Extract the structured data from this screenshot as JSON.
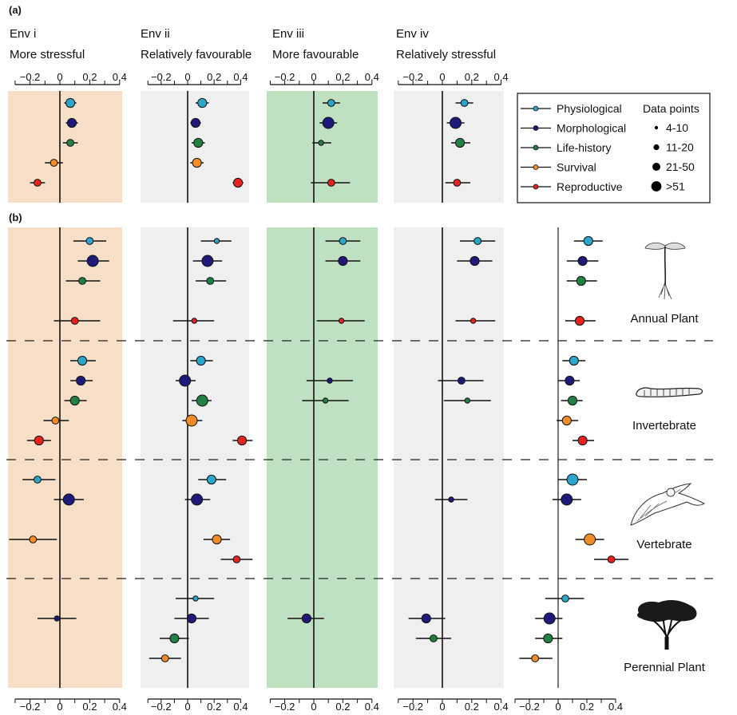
{
  "chart_data": {
    "type": "scatter",
    "subtype": "forest-plot",
    "panels_label": {
      "a": "(a)",
      "b": "(b)"
    },
    "x_ticks": [
      -0.2,
      0,
      0.2,
      0.4
    ],
    "x_tick_labels": [
      "−0.2",
      "0",
      "0.2",
      "0.4"
    ],
    "xlim": [
      -0.3,
      0.4
    ],
    "traits": [
      {
        "name": "Physiological",
        "color": "#2ba5c9"
      },
      {
        "name": "Morphological",
        "color": "#1f1a7a"
      },
      {
        "name": "Life-history",
        "color": "#238045"
      },
      {
        "name": "Survival",
        "color": "#f28c28"
      },
      {
        "name": "Reproductive",
        "color": "#e8221f"
      }
    ],
    "size_legend": {
      "title": "Data points",
      "classes": [
        "4-10",
        "11-20",
        "21-50",
        ">51"
      ]
    },
    "environments": [
      {
        "id": "i",
        "title": "Env i",
        "subtitle": "More stressful",
        "background": "#f6dfc6"
      },
      {
        "id": "ii",
        "title": "Env ii",
        "subtitle": "Relatively favourable",
        "background": "#efefef"
      },
      {
        "id": "iii",
        "title": "Env iii",
        "subtitle": "More favourable",
        "background": "#bfe0c1"
      },
      {
        "id": "iv",
        "title": "Env iv",
        "subtitle": "Relatively stressful",
        "background": "#efefef"
      },
      {
        "id": "all",
        "title": "",
        "subtitle": "",
        "background": "none"
      }
    ],
    "panel_a": {
      "i": [
        {
          "trait": "Physiological",
          "mean": 0.07,
          "lo": 0.03,
          "hi": 0.11,
          "size": 3
        },
        {
          "trait": "Morphological",
          "mean": 0.08,
          "lo": 0.04,
          "hi": 0.12,
          "size": 3
        },
        {
          "trait": "Life-history",
          "mean": 0.07,
          "lo": 0.02,
          "hi": 0.12,
          "size": 2
        },
        {
          "trait": "Survival",
          "mean": -0.04,
          "lo": -0.1,
          "hi": 0.02,
          "size": 2
        },
        {
          "trait": "Reproductive",
          "mean": -0.15,
          "lo": -0.2,
          "hi": -0.1,
          "size": 2
        }
      ],
      "ii": [
        {
          "trait": "Physiological",
          "mean": 0.11,
          "lo": 0.06,
          "hi": 0.16,
          "size": 3
        },
        {
          "trait": "Morphological",
          "mean": 0.06,
          "lo": 0.02,
          "hi": 0.1,
          "size": 3
        },
        {
          "trait": "Life-history",
          "mean": 0.08,
          "lo": 0.03,
          "hi": 0.13,
          "size": 3
        },
        {
          "trait": "Survival",
          "mean": 0.07,
          "lo": 0.02,
          "hi": 0.12,
          "size": 3
        },
        {
          "trait": "Reproductive",
          "mean": 0.38,
          "lo": 0.34,
          "hi": 0.42,
          "size": 3
        }
      ],
      "iii": [
        {
          "trait": "Physiological",
          "mean": 0.12,
          "lo": 0.06,
          "hi": 0.18,
          "size": 2
        },
        {
          "trait": "Morphological",
          "mean": 0.1,
          "lo": 0.04,
          "hi": 0.16,
          "size": 4
        },
        {
          "trait": "Life-history",
          "mean": 0.05,
          "lo": -0.01,
          "hi": 0.12,
          "size": 1
        },
        {
          "trait": "Reproductive",
          "mean": 0.12,
          "lo": -0.02,
          "hi": 0.25,
          "size": 2
        }
      ],
      "iv": [
        {
          "trait": "Physiological",
          "mean": 0.15,
          "lo": 0.09,
          "hi": 0.21,
          "size": 2
        },
        {
          "trait": "Morphological",
          "mean": 0.09,
          "lo": 0.03,
          "hi": 0.15,
          "size": 4
        },
        {
          "trait": "Life-history",
          "mean": 0.12,
          "lo": 0.06,
          "hi": 0.19,
          "size": 3
        },
        {
          "trait": "Reproductive",
          "mean": 0.1,
          "lo": 0.02,
          "hi": 0.19,
          "size": 2
        }
      ]
    },
    "groups": [
      {
        "name": "Annual Plant",
        "icon": "seedling-icon"
      },
      {
        "name": "Invertebrate",
        "icon": "caterpillar-icon"
      },
      {
        "name": "Vertebrate",
        "icon": "bird-icon"
      },
      {
        "name": "Perennial Plant",
        "icon": "tree-icon"
      }
    ],
    "panel_b": {
      "i": [
        {
          "group": "Annual Plant",
          "trait": "Physiological",
          "mean": 0.2,
          "lo": 0.09,
          "hi": 0.31,
          "size": 2
        },
        {
          "group": "Annual Plant",
          "trait": "Morphological",
          "mean": 0.22,
          "lo": 0.12,
          "hi": 0.33,
          "size": 4
        },
        {
          "group": "Annual Plant",
          "trait": "Life-history",
          "mean": 0.15,
          "lo": 0.04,
          "hi": 0.27,
          "size": 2
        },
        {
          "group": "Annual Plant",
          "trait": "Reproductive",
          "mean": 0.1,
          "lo": -0.04,
          "hi": 0.27,
          "size": 2
        },
        {
          "group": "Invertebrate",
          "trait": "Physiological",
          "mean": 0.15,
          "lo": 0.07,
          "hi": 0.24,
          "size": 3
        },
        {
          "group": "Invertebrate",
          "trait": "Morphological",
          "mean": 0.14,
          "lo": 0.07,
          "hi": 0.22,
          "size": 3
        },
        {
          "group": "Invertebrate",
          "trait": "Life-history",
          "mean": 0.1,
          "lo": 0.03,
          "hi": 0.18,
          "size": 3
        },
        {
          "group": "Invertebrate",
          "trait": "Survival",
          "mean": -0.03,
          "lo": -0.11,
          "hi": 0.06,
          "size": 2
        },
        {
          "group": "Invertebrate",
          "trait": "Reproductive",
          "mean": -0.14,
          "lo": -0.22,
          "hi": -0.06,
          "size": 3
        },
        {
          "group": "Vertebrate",
          "trait": "Physiological",
          "mean": -0.15,
          "lo": -0.25,
          "hi": -0.03,
          "size": 2
        },
        {
          "group": "Vertebrate",
          "trait": "Morphological",
          "mean": 0.06,
          "lo": -0.04,
          "hi": 0.16,
          "size": 4
        },
        {
          "group": "Vertebrate",
          "trait": "Survival",
          "mean": -0.18,
          "lo": -0.34,
          "hi": -0.02,
          "size": 2
        },
        {
          "group": "Perennial Plant",
          "trait": "Morphological",
          "mean": -0.02,
          "lo": -0.15,
          "hi": 0.11,
          "size": 1
        }
      ],
      "ii": [
        {
          "group": "Annual Plant",
          "trait": "Physiological",
          "mean": 0.22,
          "lo": 0.1,
          "hi": 0.33,
          "size": 1
        },
        {
          "group": "Annual Plant",
          "trait": "Morphological",
          "mean": 0.15,
          "lo": 0.04,
          "hi": 0.26,
          "size": 4
        },
        {
          "group": "Annual Plant",
          "trait": "Life-history",
          "mean": 0.17,
          "lo": 0.06,
          "hi": 0.29,
          "size": 2
        },
        {
          "group": "Annual Plant",
          "trait": "Reproductive",
          "mean": 0.05,
          "lo": -0.11,
          "hi": 0.2,
          "size": 1
        },
        {
          "group": "Invertebrate",
          "trait": "Physiological",
          "mean": 0.1,
          "lo": 0.02,
          "hi": 0.19,
          "size": 3
        },
        {
          "group": "Invertebrate",
          "trait": "Morphological",
          "mean": -0.02,
          "lo": -0.09,
          "hi": 0.06,
          "size": 4
        },
        {
          "group": "Invertebrate",
          "trait": "Life-history",
          "mean": 0.11,
          "lo": 0.03,
          "hi": 0.18,
          "size": 4
        },
        {
          "group": "Invertebrate",
          "trait": "Survival",
          "mean": 0.03,
          "lo": -0.04,
          "hi": 0.11,
          "size": 4
        },
        {
          "group": "Invertebrate",
          "trait": "Reproductive",
          "mean": 0.41,
          "lo": 0.34,
          "hi": 0.49,
          "size": 3
        },
        {
          "group": "Vertebrate",
          "trait": "Physiological",
          "mean": 0.18,
          "lo": 0.08,
          "hi": 0.29,
          "size": 3
        },
        {
          "group": "Vertebrate",
          "trait": "Morphological",
          "mean": 0.07,
          "lo": -0.02,
          "hi": 0.17,
          "size": 4
        },
        {
          "group": "Vertebrate",
          "trait": "Survival",
          "mean": 0.22,
          "lo": 0.12,
          "hi": 0.32,
          "size": 3
        },
        {
          "group": "Vertebrate",
          "trait": "Reproductive",
          "mean": 0.37,
          "lo": 0.25,
          "hi": 0.49,
          "size": 2
        },
        {
          "group": "Perennial Plant",
          "trait": "Physiological",
          "mean": 0.06,
          "lo": -0.09,
          "hi": 0.2,
          "size": 1
        },
        {
          "group": "Perennial Plant",
          "trait": "Morphological",
          "mean": 0.03,
          "lo": -0.1,
          "hi": 0.16,
          "size": 3
        },
        {
          "group": "Perennial Plant",
          "trait": "Life-history",
          "mean": -0.1,
          "lo": -0.21,
          "hi": 0.01,
          "size": 3
        },
        {
          "group": "Perennial Plant",
          "trait": "Survival",
          "mean": -0.17,
          "lo": -0.29,
          "hi": -0.05,
          "size": 2
        }
      ],
      "iii": [
        {
          "group": "Annual Plant",
          "trait": "Physiological",
          "mean": 0.2,
          "lo": 0.08,
          "hi": 0.32,
          "size": 2
        },
        {
          "group": "Annual Plant",
          "trait": "Morphological",
          "mean": 0.2,
          "lo": 0.08,
          "hi": 0.32,
          "size": 3
        },
        {
          "group": "Annual Plant",
          "trait": "Reproductive",
          "mean": 0.19,
          "lo": 0.02,
          "hi": 0.35,
          "size": 1
        },
        {
          "group": "Invertebrate",
          "trait": "Morphological",
          "mean": 0.11,
          "lo": -0.05,
          "hi": 0.27,
          "size": 1
        },
        {
          "group": "Invertebrate",
          "trait": "Life-history",
          "mean": 0.08,
          "lo": -0.08,
          "hi": 0.24,
          "size": 1
        },
        {
          "group": "Perennial Plant",
          "trait": "Morphological",
          "mean": -0.05,
          "lo": -0.18,
          "hi": 0.07,
          "size": 3
        }
      ],
      "iv": [
        {
          "group": "Annual Plant",
          "trait": "Physiological",
          "mean": 0.24,
          "lo": 0.12,
          "hi": 0.36,
          "size": 2
        },
        {
          "group": "Annual Plant",
          "trait": "Morphological",
          "mean": 0.22,
          "lo": 0.1,
          "hi": 0.34,
          "size": 3
        },
        {
          "group": "Annual Plant",
          "trait": "Reproductive",
          "mean": 0.21,
          "lo": 0.09,
          "hi": 0.36,
          "size": 1
        },
        {
          "group": "Invertebrate",
          "trait": "Morphological",
          "mean": 0.13,
          "lo": -0.03,
          "hi": 0.28,
          "size": 2
        },
        {
          "group": "Invertebrate",
          "trait": "Life-history",
          "mean": 0.17,
          "lo": 0.01,
          "hi": 0.33,
          "size": 1
        },
        {
          "group": "Vertebrate",
          "trait": "Morphological",
          "mean": 0.06,
          "lo": -0.05,
          "hi": 0.17,
          "size": 1
        },
        {
          "group": "Perennial Plant",
          "trait": "Morphological",
          "mean": -0.11,
          "lo": -0.23,
          "hi": 0.02,
          "size": 3
        },
        {
          "group": "Perennial Plant",
          "trait": "Life-history",
          "mean": -0.06,
          "lo": -0.18,
          "hi": 0.06,
          "size": 2
        }
      ],
      "all": [
        {
          "group": "Annual Plant",
          "trait": "Physiological",
          "mean": 0.21,
          "lo": 0.11,
          "hi": 0.31,
          "size": 3
        },
        {
          "group": "Annual Plant",
          "trait": "Morphological",
          "mean": 0.17,
          "lo": 0.06,
          "hi": 0.28,
          "size": 3
        },
        {
          "group": "Annual Plant",
          "trait": "Life-history",
          "mean": 0.16,
          "lo": 0.06,
          "hi": 0.27,
          "size": 3
        },
        {
          "group": "Annual Plant",
          "trait": "Reproductive",
          "mean": 0.15,
          "lo": 0.05,
          "hi": 0.26,
          "size": 3
        },
        {
          "group": "Invertebrate",
          "trait": "Physiological",
          "mean": 0.11,
          "lo": 0.03,
          "hi": 0.19,
          "size": 3
        },
        {
          "group": "Invertebrate",
          "trait": "Morphological",
          "mean": 0.08,
          "lo": 0.0,
          "hi": 0.15,
          "size": 3
        },
        {
          "group": "Invertebrate",
          "trait": "Life-history",
          "mean": 0.1,
          "lo": 0.02,
          "hi": 0.17,
          "size": 3
        },
        {
          "group": "Invertebrate",
          "trait": "Survival",
          "mean": 0.06,
          "lo": -0.01,
          "hi": 0.14,
          "size": 3
        },
        {
          "group": "Invertebrate",
          "trait": "Reproductive",
          "mean": 0.17,
          "lo": 0.1,
          "hi": 0.25,
          "size": 3
        },
        {
          "group": "Vertebrate",
          "trait": "Physiological",
          "mean": 0.1,
          "lo": 0.0,
          "hi": 0.2,
          "size": 4
        },
        {
          "group": "Vertebrate",
          "trait": "Morphological",
          "mean": 0.06,
          "lo": -0.04,
          "hi": 0.16,
          "size": 4
        },
        {
          "group": "Vertebrate",
          "trait": "Survival",
          "mean": 0.22,
          "lo": 0.12,
          "hi": 0.32,
          "size": 4
        },
        {
          "group": "Vertebrate",
          "trait": "Reproductive",
          "mean": 0.37,
          "lo": 0.25,
          "hi": 0.49,
          "size": 2
        },
        {
          "group": "Perennial Plant",
          "trait": "Physiological",
          "mean": 0.05,
          "lo": -0.09,
          "hi": 0.18,
          "size": 2
        },
        {
          "group": "Perennial Plant",
          "trait": "Morphological",
          "mean": -0.06,
          "lo": -0.16,
          "hi": 0.03,
          "size": 4
        },
        {
          "group": "Perennial Plant",
          "trait": "Life-history",
          "mean": -0.07,
          "lo": -0.16,
          "hi": 0.03,
          "size": 3
        },
        {
          "group": "Perennial Plant",
          "trait": "Survival",
          "mean": -0.16,
          "lo": -0.27,
          "hi": -0.04,
          "size": 2
        }
      ]
    }
  }
}
